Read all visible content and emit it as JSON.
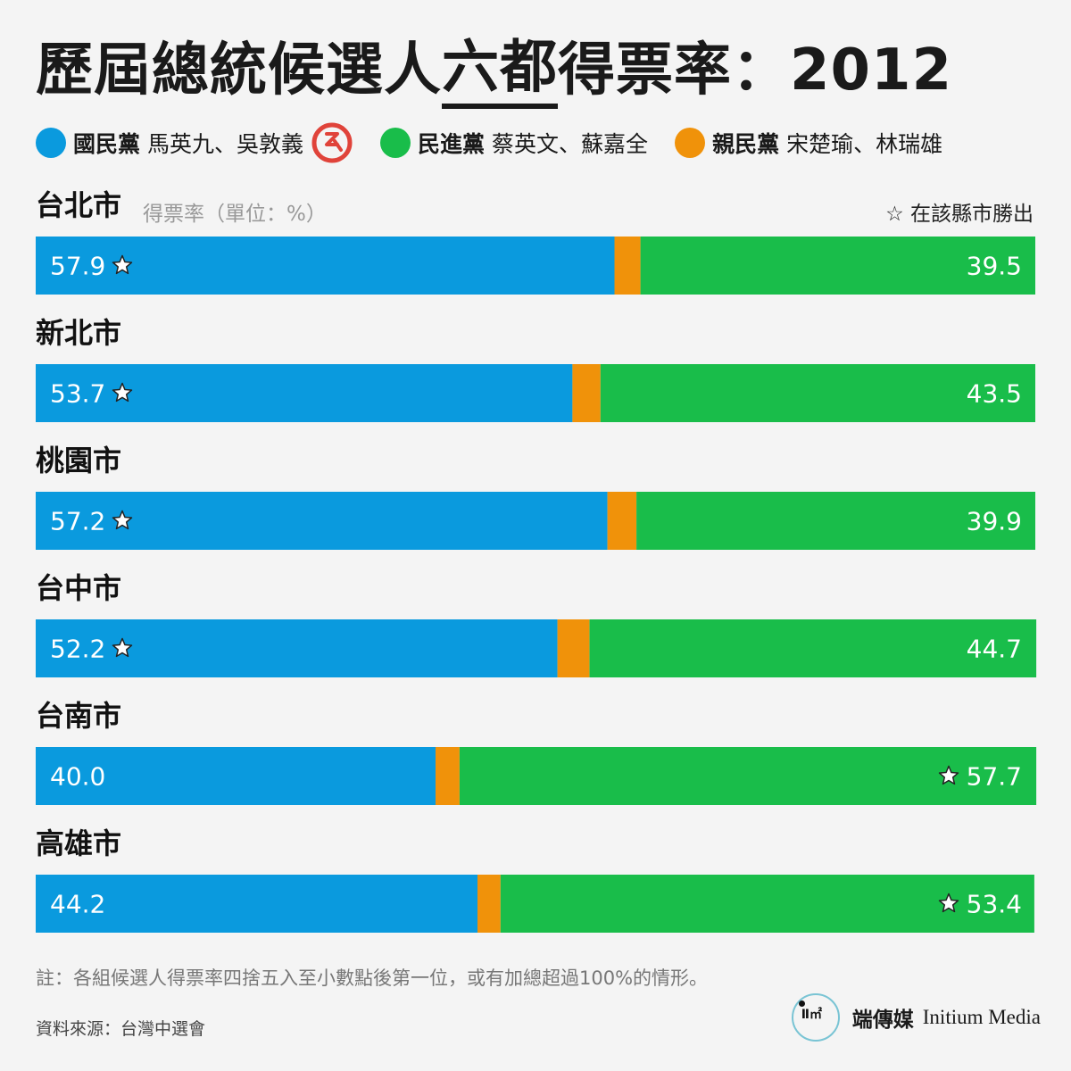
{
  "title": {
    "prefix": "歷屆總統候選人",
    "underlined": "六都",
    "suffix": "得票率：2012"
  },
  "legend": [
    {
      "party": "國民黨",
      "candidates": "馬英九、吳敦義",
      "color": "#0a9ade",
      "winner_icon": "vote-stamp-icon"
    },
    {
      "party": "民進黨",
      "candidates": "蔡英文、蘇嘉全",
      "color": "#19bd4a"
    },
    {
      "party": "親民黨",
      "candidates": "宋楚瑜、林瑞雄",
      "color": "#f0920a"
    }
  ],
  "unit_label": "得票率（單位：%）",
  "winner_note": "☆ 在該縣市勝出",
  "note": "註：各組候選人得票率四捨五入至小數點後第一位，或有加總超過100%的情形。",
  "source": "資料來源：台灣中選會",
  "brand": {
    "cn": "端傳媒",
    "en": "Initium Media",
    "logo_glyph": "Ⅱ㎡"
  },
  "colors": {
    "kmt": "#0a9ade",
    "dpp": "#19bd4a",
    "pfp": "#f0920a",
    "star_fill": "#ffffff",
    "stamp": "#e0433a"
  },
  "chart_data": {
    "type": "bar",
    "stacked": true,
    "orientation": "horizontal",
    "categories": [
      "台北市",
      "新北市",
      "桃園市",
      "台中市",
      "台南市",
      "高雄市"
    ],
    "series": [
      {
        "name": "國民黨",
        "values": [
          57.9,
          53.7,
          57.2,
          52.2,
          40.0,
          44.2
        ],
        "color": "#0a9ade"
      },
      {
        "name": "親民黨",
        "values": [
          2.6,
          2.8,
          2.9,
          3.2,
          2.4,
          2.3
        ],
        "color": "#f0920a"
      },
      {
        "name": "民進黨",
        "values": [
          39.5,
          43.5,
          39.9,
          44.7,
          57.7,
          53.4
        ],
        "color": "#19bd4a"
      }
    ],
    "labels": {
      "kmt": [
        "57.9",
        "53.7",
        "57.2",
        "52.2",
        "40.0",
        "44.2"
      ],
      "dpp": [
        "39.5",
        "43.5",
        "39.9",
        "44.7",
        "57.7",
        "53.4"
      ]
    },
    "winner": [
      "國民黨",
      "國民黨",
      "國民黨",
      "國民黨",
      "民進黨",
      "民進黨"
    ],
    "xlim": [
      0,
      100
    ]
  }
}
